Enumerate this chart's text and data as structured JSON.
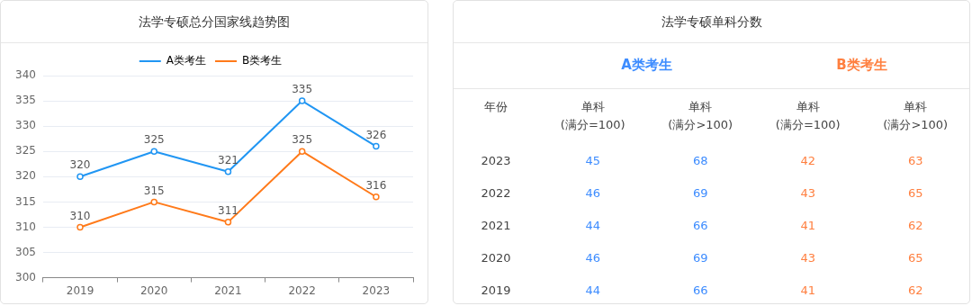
{
  "chart_data": [
    {
      "type": "line",
      "title": "法学专硕总分国家线趋势图",
      "categories": [
        "2019",
        "2020",
        "2021",
        "2022",
        "2023"
      ],
      "series": [
        {
          "name": "A类考生",
          "color": "#2196f3",
          "values": [
            320,
            325,
            321,
            335,
            326
          ]
        },
        {
          "name": "B类考生",
          "color": "#ff7a1a",
          "values": [
            310,
            315,
            311,
            325,
            316
          ]
        }
      ],
      "ylim": [
        300,
        340
      ],
      "yticks": [
        300,
        305,
        310,
        315,
        320,
        325,
        330,
        335,
        340
      ],
      "grid": "y",
      "legend": "top",
      "marker": "circle",
      "data_labels": true
    },
    {
      "type": "heatmap",
      "title": "法学专硕单科分数",
      "ylabel": "年份",
      "categories": [
        "单科(满分=100)",
        "单科(满分>100)",
        "单科(满分=100)",
        "单科(满分>100)"
      ],
      "y_categories": [
        "2023",
        "2022",
        "2021",
        "2020",
        "2019"
      ],
      "cells": [
        [
          45,
          68,
          42,
          63
        ],
        [
          46,
          69,
          43,
          65
        ],
        [
          44,
          66,
          41,
          62
        ],
        [
          46,
          69,
          43,
          65
        ],
        [
          44,
          66,
          41,
          62
        ]
      ],
      "colors": [
        "#3d8cff",
        "#3d8cff",
        "#ff7f3f",
        "#ff7f3f"
      ],
      "annotations": [
        "A类考生",
        "B类考生"
      ],
      "data_labels": true
    }
  ]
}
